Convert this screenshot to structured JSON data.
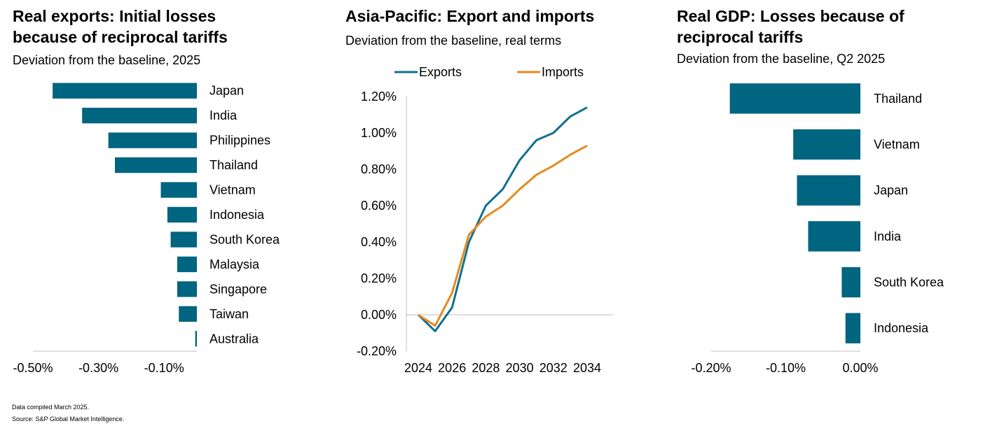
{
  "footnotes": {
    "compiled": "Data compiled March 2025.",
    "source": "Source: S&P Global Market Intelligence."
  },
  "colors": {
    "bar": "#006580",
    "exports": "#11718f",
    "imports": "#e58a1f",
    "axis": "#bfbfbf"
  },
  "chart_data": [
    {
      "type": "bar",
      "orientation": "horizontal",
      "title_line1": "Real exports: Initial losses",
      "title_line2": "because of reciprocal tariffs",
      "subtitle": "Deviation from the baseline, 2025",
      "categories": [
        "Japan",
        "India",
        "Philippines",
        "Thailand",
        "Vietnam",
        "Indonesia",
        "South Korea",
        "Malaysia",
        "Singapore",
        "Taiwan",
        "Australia"
      ],
      "values": [
        -0.44,
        -0.35,
        -0.27,
        -0.25,
        -0.11,
        -0.09,
        -0.08,
        -0.06,
        -0.06,
        -0.055,
        -0.005
      ],
      "xlim": [
        -0.5,
        0.0
      ],
      "x_ticks": [
        "-0.50%",
        "-0.30%",
        "-0.10%"
      ],
      "x_tick_values": [
        -0.5,
        -0.3,
        -0.1
      ]
    },
    {
      "type": "line",
      "title": "Asia-Pacific: Export and imports",
      "subtitle": "Deviation from the baseline, real terms",
      "legend_position": "top",
      "x": [
        2024,
        2025,
        2026,
        2027,
        2028,
        2029,
        2030,
        2031,
        2032,
        2033,
        2034
      ],
      "series": [
        {
          "name": "Exports",
          "values": [
            0.0,
            -0.09,
            0.04,
            0.4,
            0.6,
            0.69,
            0.85,
            0.96,
            1.0,
            1.09,
            1.14
          ]
        },
        {
          "name": "Imports",
          "values": [
            0.0,
            -0.06,
            0.12,
            0.44,
            0.54,
            0.6,
            0.69,
            0.77,
            0.82,
            0.88,
            0.93
          ]
        }
      ],
      "ylim": [
        -0.2,
        1.2
      ],
      "y_ticks": [
        "1.20%",
        "1.00%",
        "0.80%",
        "0.60%",
        "0.40%",
        "0.20%",
        "0.00%",
        "-0.20%"
      ],
      "y_tick_values": [
        1.2,
        1.0,
        0.8,
        0.6,
        0.4,
        0.2,
        0.0,
        -0.2
      ],
      "x_ticks": [
        "2024",
        "2026",
        "2028",
        "2030",
        "2032",
        "2034"
      ],
      "x_tick_values": [
        2024,
        2026,
        2028,
        2030,
        2032,
        2034
      ]
    },
    {
      "type": "bar",
      "orientation": "horizontal",
      "title_line1": "Real GDP: Losses because of",
      "title_line2": "reciprocal tariffs",
      "subtitle": "Deviation from the baseline, Q2 2025",
      "categories": [
        "Thailand",
        "Vietnam",
        "Japan",
        "India",
        "South Korea",
        "Indonesia"
      ],
      "values": [
        -0.175,
        -0.09,
        -0.085,
        -0.07,
        -0.025,
        -0.02
      ],
      "xlim": [
        -0.2,
        0.0
      ],
      "x_ticks": [
        "-0.20%",
        "-0.10%",
        "0.00%"
      ],
      "x_tick_values": [
        -0.2,
        -0.1,
        0.0
      ]
    }
  ]
}
